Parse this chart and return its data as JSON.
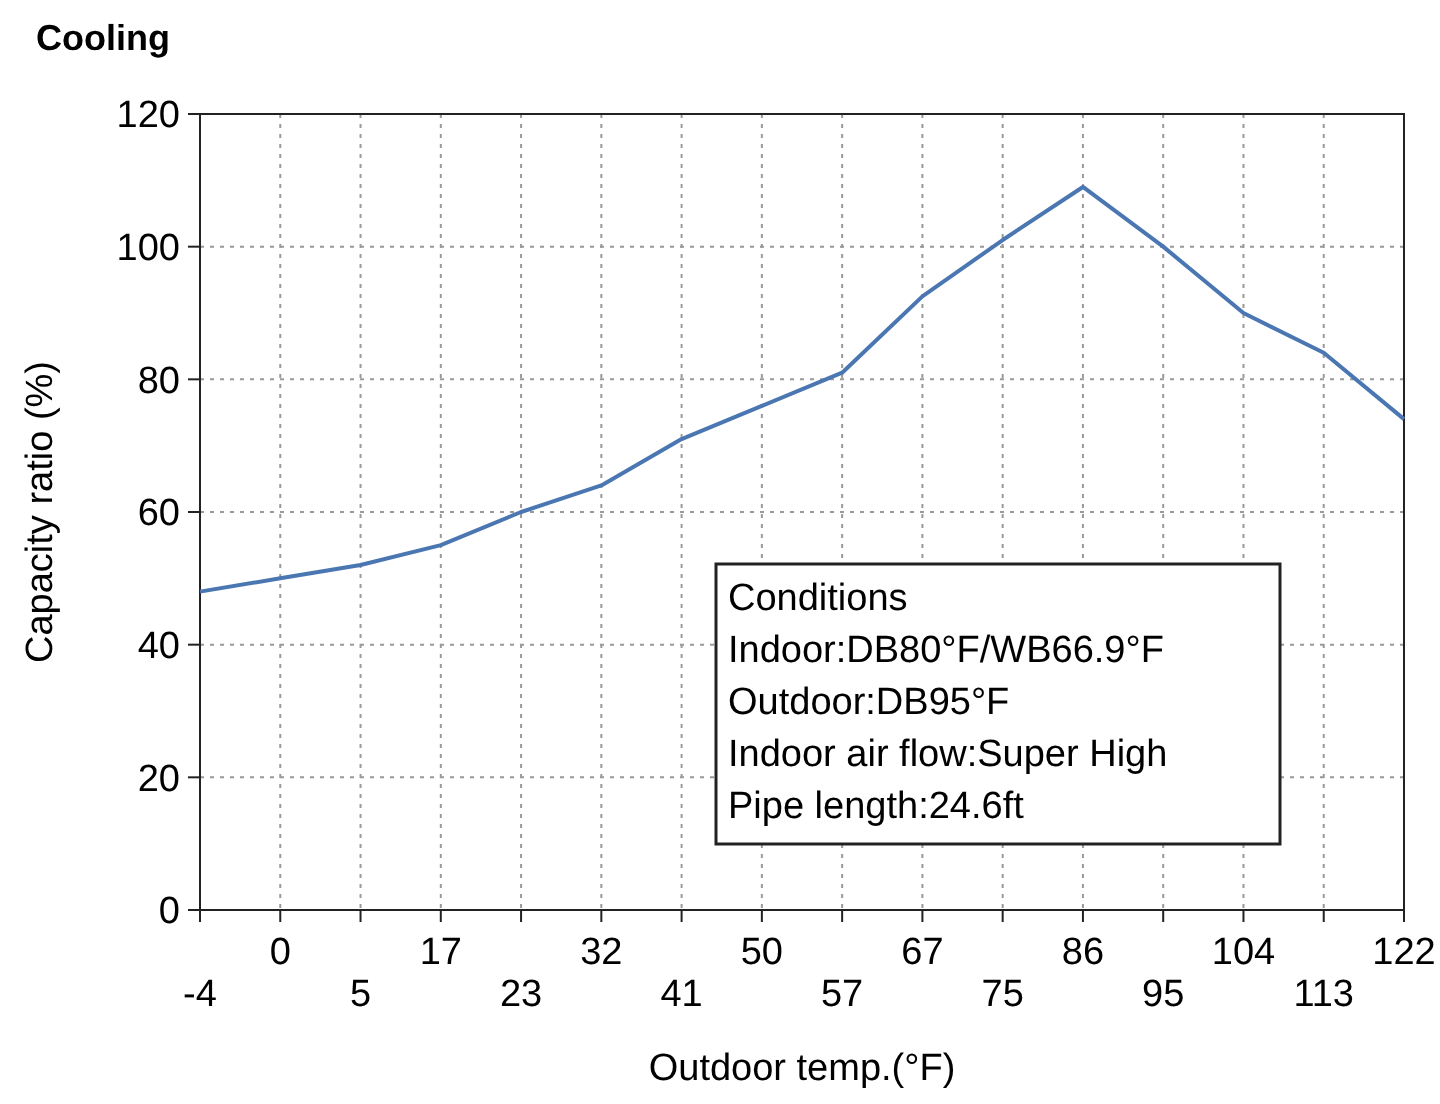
{
  "chart_data": {
    "type": "line",
    "title": "Cooling",
    "xlabel": "Outdoor temp.(°F)",
    "ylabel": "Capacity ratio (%)",
    "categories": [
      "-4",
      "0",
      "5",
      "17",
      "23",
      "32",
      "41",
      "50",
      "57",
      "67",
      "75",
      "86",
      "95",
      "104",
      "113",
      "122"
    ],
    "series": [
      {
        "color": "#4a76b2",
        "values": [
          48,
          50,
          52,
          55,
          60,
          64,
          71,
          76,
          81,
          92.5,
          101,
          109,
          100,
          90,
          84,
          74
        ]
      }
    ],
    "ylim": [
      0,
      120
    ],
    "yticks": [
      0,
      20,
      40,
      60,
      80,
      100,
      120
    ],
    "grid": true,
    "marker": "none",
    "line_style": "solid",
    "annotations": [
      "Conditions",
      "Indoor:DB80°F/WB66.9°F",
      "Outdoor:DB95°F",
      "Indoor air flow:Super High",
      "Pipe length:24.6ft"
    ]
  }
}
